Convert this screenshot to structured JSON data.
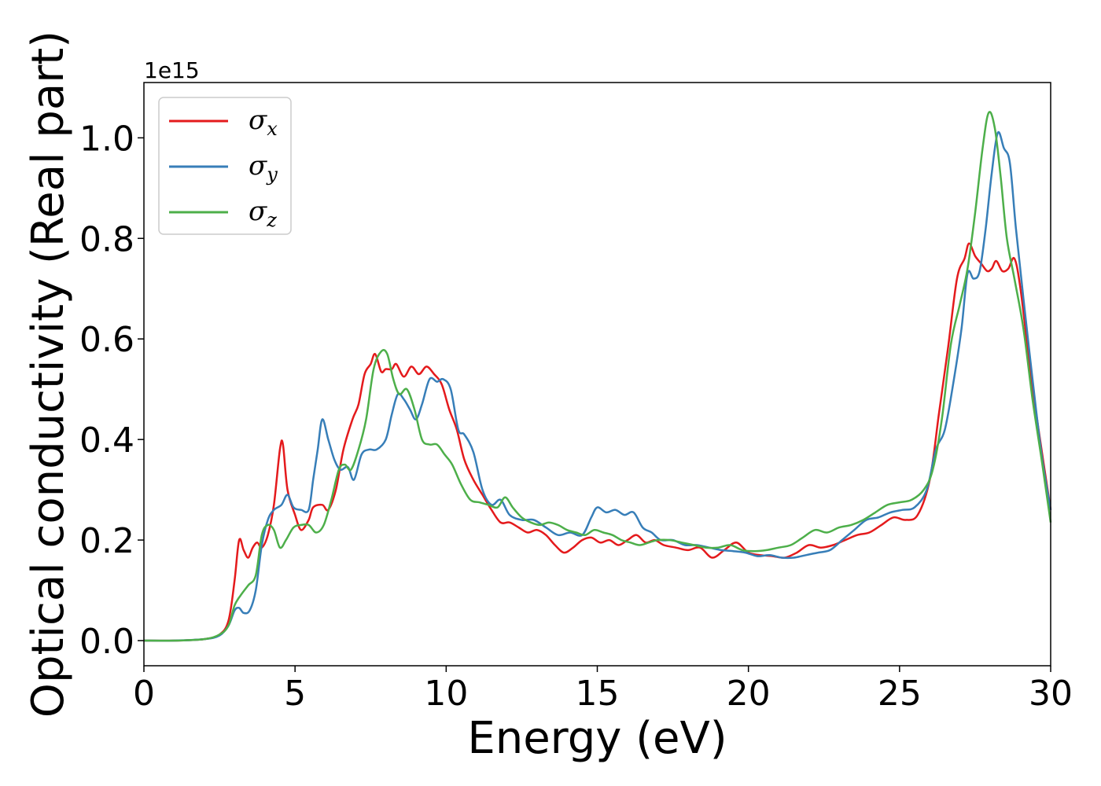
{
  "chart_data": {
    "type": "line",
    "title": "",
    "xlabel": "Energy (eV)",
    "ylabel": "Optical conductivity (Real part)",
    "y_offset_label": "1e15",
    "xlim": [
      0,
      30
    ],
    "ylim": [
      -0.05,
      1.11
    ],
    "x_ticks": [
      0,
      5,
      10,
      15,
      20,
      25,
      30
    ],
    "x_tick_labels": [
      "0",
      "5",
      "10",
      "15",
      "20",
      "25",
      "30"
    ],
    "y_ticks": [
      0.0,
      0.2,
      0.4,
      0.6,
      0.8,
      1.0
    ],
    "y_tick_labels": [
      "0.0",
      "0.2",
      "0.4",
      "0.6",
      "0.8",
      "1.0"
    ],
    "grid": false,
    "legend_position": "top-left",
    "series": [
      {
        "name": "σx",
        "legend_symbol": "σ",
        "legend_subscript": "x",
        "color": "#e41a1c",
        "points": [
          [
            0,
            0
          ],
          [
            1,
            0
          ],
          [
            2,
            0.003
          ],
          [
            2.5,
            0.012
          ],
          [
            2.8,
            0.04
          ],
          [
            3.0,
            0.12
          ],
          [
            3.15,
            0.2
          ],
          [
            3.3,
            0.18
          ],
          [
            3.45,
            0.165
          ],
          [
            3.6,
            0.185
          ],
          [
            3.75,
            0.195
          ],
          [
            3.9,
            0.185
          ],
          [
            4.1,
            0.21
          ],
          [
            4.3,
            0.27
          ],
          [
            4.5,
            0.38
          ],
          [
            4.6,
            0.39
          ],
          [
            4.75,
            0.3
          ],
          [
            5.0,
            0.25
          ],
          [
            5.2,
            0.22
          ],
          [
            5.45,
            0.24
          ],
          [
            5.6,
            0.265
          ],
          [
            5.9,
            0.27
          ],
          [
            6.1,
            0.26
          ],
          [
            6.35,
            0.3
          ],
          [
            6.6,
            0.38
          ],
          [
            6.9,
            0.44
          ],
          [
            7.1,
            0.47
          ],
          [
            7.3,
            0.53
          ],
          [
            7.5,
            0.55
          ],
          [
            7.65,
            0.57
          ],
          [
            7.85,
            0.535
          ],
          [
            8.0,
            0.54
          ],
          [
            8.2,
            0.54
          ],
          [
            8.35,
            0.55
          ],
          [
            8.6,
            0.525
          ],
          [
            8.85,
            0.545
          ],
          [
            9.1,
            0.53
          ],
          [
            9.35,
            0.545
          ],
          [
            9.6,
            0.53
          ],
          [
            9.85,
            0.51
          ],
          [
            10.1,
            0.46
          ],
          [
            10.35,
            0.42
          ],
          [
            10.6,
            0.36
          ],
          [
            10.9,
            0.32
          ],
          [
            11.2,
            0.29
          ],
          [
            11.5,
            0.26
          ],
          [
            11.8,
            0.235
          ],
          [
            12.1,
            0.235
          ],
          [
            12.4,
            0.225
          ],
          [
            12.7,
            0.215
          ],
          [
            13.0,
            0.22
          ],
          [
            13.3,
            0.21
          ],
          [
            13.6,
            0.19
          ],
          [
            13.9,
            0.175
          ],
          [
            14.2,
            0.185
          ],
          [
            14.5,
            0.2
          ],
          [
            14.8,
            0.205
          ],
          [
            15.1,
            0.195
          ],
          [
            15.4,
            0.2
          ],
          [
            15.7,
            0.19
          ],
          [
            16.0,
            0.2
          ],
          [
            16.3,
            0.21
          ],
          [
            16.6,
            0.195
          ],
          [
            16.9,
            0.2
          ],
          [
            17.2,
            0.19
          ],
          [
            17.6,
            0.185
          ],
          [
            18.0,
            0.18
          ],
          [
            18.4,
            0.185
          ],
          [
            18.8,
            0.165
          ],
          [
            19.2,
            0.18
          ],
          [
            19.6,
            0.195
          ],
          [
            20.0,
            0.175
          ],
          [
            20.4,
            0.17
          ],
          [
            20.8,
            0.168
          ],
          [
            21.2,
            0.165
          ],
          [
            21.6,
            0.175
          ],
          [
            22.0,
            0.19
          ],
          [
            22.4,
            0.185
          ],
          [
            22.8,
            0.19
          ],
          [
            23.2,
            0.2
          ],
          [
            23.6,
            0.21
          ],
          [
            24.0,
            0.215
          ],
          [
            24.4,
            0.23
          ],
          [
            24.8,
            0.245
          ],
          [
            25.2,
            0.24
          ],
          [
            25.6,
            0.25
          ],
          [
            26.0,
            0.32
          ],
          [
            26.3,
            0.45
          ],
          [
            26.6,
            0.58
          ],
          [
            26.9,
            0.72
          ],
          [
            27.15,
            0.76
          ],
          [
            27.3,
            0.79
          ],
          [
            27.5,
            0.765
          ],
          [
            27.7,
            0.75
          ],
          [
            27.9,
            0.735
          ],
          [
            28.05,
            0.74
          ],
          [
            28.2,
            0.755
          ],
          [
            28.4,
            0.735
          ],
          [
            28.6,
            0.74
          ],
          [
            28.8,
            0.76
          ],
          [
            29.0,
            0.7
          ],
          [
            29.3,
            0.55
          ],
          [
            29.6,
            0.42
          ],
          [
            30.0,
            0.26
          ]
        ]
      },
      {
        "name": "σy",
        "legend_symbol": "σ",
        "legend_subscript": "y",
        "color": "#377eb8",
        "points": [
          [
            0,
            0
          ],
          [
            1,
            0
          ],
          [
            2,
            0.003
          ],
          [
            2.5,
            0.01
          ],
          [
            2.8,
            0.03
          ],
          [
            3.0,
            0.06
          ],
          [
            3.15,
            0.065
          ],
          [
            3.3,
            0.055
          ],
          [
            3.5,
            0.06
          ],
          [
            3.7,
            0.1
          ],
          [
            3.9,
            0.19
          ],
          [
            4.1,
            0.24
          ],
          [
            4.3,
            0.26
          ],
          [
            4.55,
            0.27
          ],
          [
            4.75,
            0.29
          ],
          [
            4.95,
            0.265
          ],
          [
            5.2,
            0.26
          ],
          [
            5.45,
            0.26
          ],
          [
            5.6,
            0.32
          ],
          [
            5.75,
            0.38
          ],
          [
            5.9,
            0.44
          ],
          [
            6.1,
            0.4
          ],
          [
            6.3,
            0.36
          ],
          [
            6.5,
            0.34
          ],
          [
            6.75,
            0.345
          ],
          [
            6.95,
            0.32
          ],
          [
            7.2,
            0.37
          ],
          [
            7.45,
            0.38
          ],
          [
            7.7,
            0.38
          ],
          [
            8.0,
            0.4
          ],
          [
            8.2,
            0.45
          ],
          [
            8.4,
            0.49
          ],
          [
            8.6,
            0.48
          ],
          [
            8.8,
            0.46
          ],
          [
            9.0,
            0.44
          ],
          [
            9.2,
            0.47
          ],
          [
            9.45,
            0.52
          ],
          [
            9.7,
            0.515
          ],
          [
            9.9,
            0.52
          ],
          [
            10.15,
            0.5
          ],
          [
            10.4,
            0.42
          ],
          [
            10.6,
            0.41
          ],
          [
            10.9,
            0.375
          ],
          [
            11.2,
            0.3
          ],
          [
            11.5,
            0.27
          ],
          [
            11.8,
            0.28
          ],
          [
            12.1,
            0.25
          ],
          [
            12.5,
            0.24
          ],
          [
            12.9,
            0.24
          ],
          [
            13.3,
            0.225
          ],
          [
            13.7,
            0.21
          ],
          [
            14.1,
            0.215
          ],
          [
            14.5,
            0.21
          ],
          [
            14.8,
            0.245
          ],
          [
            15.0,
            0.265
          ],
          [
            15.3,
            0.255
          ],
          [
            15.6,
            0.26
          ],
          [
            15.9,
            0.25
          ],
          [
            16.2,
            0.255
          ],
          [
            16.5,
            0.225
          ],
          [
            16.8,
            0.215
          ],
          [
            17.1,
            0.2
          ],
          [
            17.5,
            0.2
          ],
          [
            17.9,
            0.19
          ],
          [
            18.3,
            0.19
          ],
          [
            18.7,
            0.185
          ],
          [
            19.1,
            0.18
          ],
          [
            19.5,
            0.178
          ],
          [
            19.9,
            0.175
          ],
          [
            20.3,
            0.168
          ],
          [
            20.7,
            0.17
          ],
          [
            21.1,
            0.165
          ],
          [
            21.5,
            0.165
          ],
          [
            21.9,
            0.17
          ],
          [
            22.3,
            0.175
          ],
          [
            22.7,
            0.18
          ],
          [
            23.1,
            0.2
          ],
          [
            23.5,
            0.22
          ],
          [
            23.9,
            0.24
          ],
          [
            24.3,
            0.245
          ],
          [
            24.7,
            0.255
          ],
          [
            25.1,
            0.26
          ],
          [
            25.5,
            0.265
          ],
          [
            25.9,
            0.3
          ],
          [
            26.2,
            0.38
          ],
          [
            26.5,
            0.42
          ],
          [
            26.8,
            0.52
          ],
          [
            27.05,
            0.62
          ],
          [
            27.25,
            0.73
          ],
          [
            27.45,
            0.72
          ],
          [
            27.65,
            0.735
          ],
          [
            27.85,
            0.82
          ],
          [
            28.05,
            0.93
          ],
          [
            28.25,
            1.01
          ],
          [
            28.45,
            0.98
          ],
          [
            28.65,
            0.95
          ],
          [
            28.85,
            0.82
          ],
          [
            29.1,
            0.68
          ],
          [
            29.4,
            0.52
          ],
          [
            29.7,
            0.37
          ],
          [
            30.0,
            0.26
          ]
        ]
      },
      {
        "name": "σz",
        "legend_symbol": "σ",
        "legend_subscript": "z",
        "color": "#4daf4a",
        "points": [
          [
            0,
            0
          ],
          [
            1,
            0
          ],
          [
            2,
            0.003
          ],
          [
            2.5,
            0.012
          ],
          [
            2.8,
            0.03
          ],
          [
            3.0,
            0.07
          ],
          [
            3.2,
            0.09
          ],
          [
            3.45,
            0.11
          ],
          [
            3.7,
            0.13
          ],
          [
            3.9,
            0.21
          ],
          [
            4.1,
            0.23
          ],
          [
            4.3,
            0.22
          ],
          [
            4.5,
            0.185
          ],
          [
            4.7,
            0.2
          ],
          [
            4.95,
            0.225
          ],
          [
            5.2,
            0.23
          ],
          [
            5.45,
            0.23
          ],
          [
            5.7,
            0.215
          ],
          [
            5.95,
            0.23
          ],
          [
            6.2,
            0.28
          ],
          [
            6.45,
            0.34
          ],
          [
            6.65,
            0.35
          ],
          [
            6.85,
            0.34
          ],
          [
            7.1,
            0.38
          ],
          [
            7.35,
            0.44
          ],
          [
            7.6,
            0.54
          ],
          [
            7.85,
            0.575
          ],
          [
            8.05,
            0.57
          ],
          [
            8.25,
            0.52
          ],
          [
            8.45,
            0.49
          ],
          [
            8.7,
            0.5
          ],
          [
            8.95,
            0.46
          ],
          [
            9.2,
            0.4
          ],
          [
            9.45,
            0.39
          ],
          [
            9.7,
            0.39
          ],
          [
            9.95,
            0.37
          ],
          [
            10.2,
            0.35
          ],
          [
            10.5,
            0.31
          ],
          [
            10.8,
            0.28
          ],
          [
            11.1,
            0.275
          ],
          [
            11.4,
            0.27
          ],
          [
            11.7,
            0.265
          ],
          [
            11.95,
            0.285
          ],
          [
            12.2,
            0.265
          ],
          [
            12.5,
            0.245
          ],
          [
            12.8,
            0.235
          ],
          [
            13.1,
            0.23
          ],
          [
            13.4,
            0.235
          ],
          [
            13.7,
            0.23
          ],
          [
            14.0,
            0.22
          ],
          [
            14.3,
            0.215
          ],
          [
            14.6,
            0.21
          ],
          [
            14.9,
            0.22
          ],
          [
            15.2,
            0.215
          ],
          [
            15.5,
            0.21
          ],
          [
            15.8,
            0.2
          ],
          [
            16.1,
            0.195
          ],
          [
            16.4,
            0.19
          ],
          [
            16.7,
            0.195
          ],
          [
            17.0,
            0.2
          ],
          [
            17.4,
            0.2
          ],
          [
            17.8,
            0.195
          ],
          [
            18.2,
            0.19
          ],
          [
            18.6,
            0.185
          ],
          [
            19.0,
            0.185
          ],
          [
            19.4,
            0.19
          ],
          [
            19.8,
            0.18
          ],
          [
            20.2,
            0.178
          ],
          [
            20.6,
            0.18
          ],
          [
            21.0,
            0.185
          ],
          [
            21.4,
            0.19
          ],
          [
            21.8,
            0.205
          ],
          [
            22.2,
            0.22
          ],
          [
            22.6,
            0.215
          ],
          [
            23.0,
            0.225
          ],
          [
            23.4,
            0.23
          ],
          [
            23.8,
            0.24
          ],
          [
            24.2,
            0.255
          ],
          [
            24.6,
            0.27
          ],
          [
            25.0,
            0.275
          ],
          [
            25.4,
            0.28
          ],
          [
            25.8,
            0.3
          ],
          [
            26.1,
            0.34
          ],
          [
            26.4,
            0.44
          ],
          [
            26.7,
            0.59
          ],
          [
            27.0,
            0.67
          ],
          [
            27.25,
            0.74
          ],
          [
            27.5,
            0.85
          ],
          [
            27.75,
            0.98
          ],
          [
            27.95,
            1.05
          ],
          [
            28.15,
            1.02
          ],
          [
            28.35,
            0.92
          ],
          [
            28.55,
            0.8
          ],
          [
            28.8,
            0.72
          ],
          [
            29.1,
            0.62
          ],
          [
            29.4,
            0.48
          ],
          [
            29.7,
            0.36
          ],
          [
            30.0,
            0.235
          ]
        ]
      }
    ]
  }
}
